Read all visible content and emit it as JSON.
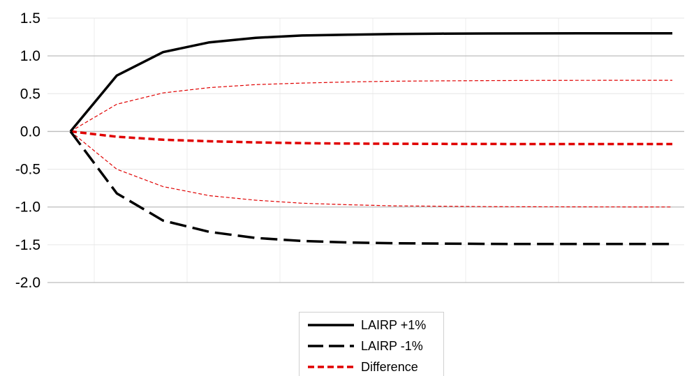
{
  "chart_data": {
    "type": "line",
    "title": "",
    "xlabel": "",
    "ylabel": "",
    "x": [
      0,
      1,
      2,
      3,
      4,
      5,
      6,
      7,
      8,
      9,
      10,
      11,
      12,
      13
    ],
    "ylim": [
      -2.0,
      1.5
    ],
    "yticks": [
      "1.5",
      "1.0",
      "0.5",
      "0.0",
      "-0.5",
      "-1.0",
      "-1.5",
      "-2.0"
    ],
    "grid": "horizontal and vertical",
    "legend": "bottom-center",
    "series": [
      {
        "name": "LAIRP +1%",
        "color": "#000000",
        "style": "solid",
        "values": [
          0.0,
          0.74,
          1.05,
          1.18,
          1.24,
          1.27,
          1.28,
          1.29,
          1.295,
          1.297,
          1.298,
          1.299,
          1.3,
          1.3
        ]
      },
      {
        "name": "LAIRP -1%",
        "color": "#000000",
        "style": "long-dash",
        "values": [
          0.0,
          -0.82,
          -1.18,
          -1.33,
          -1.41,
          -1.45,
          -1.47,
          -1.48,
          -1.485,
          -1.488,
          -1.49,
          -1.49,
          -1.49,
          -1.49
        ]
      },
      {
        "name": "Difference",
        "color": "#e00000",
        "style": "dashed",
        "values": [
          0.0,
          -0.07,
          -0.11,
          -0.13,
          -0.145,
          -0.155,
          -0.16,
          -0.163,
          -0.165,
          -0.166,
          -0.167,
          -0.167,
          -0.167,
          -0.167
        ]
      },
      {
        "name": "",
        "color": "#e00000",
        "style": "thin-dashed",
        "values": [
          0.0,
          0.36,
          0.51,
          0.58,
          0.62,
          0.64,
          0.655,
          0.665,
          0.67,
          0.673,
          0.675,
          0.676,
          0.677,
          0.677
        ]
      },
      {
        "name": "",
        "color": "#e00000",
        "style": "thin-dashed",
        "values": [
          0.0,
          -0.5,
          -0.73,
          -0.85,
          -0.91,
          -0.95,
          -0.97,
          -0.985,
          -0.99,
          -0.995,
          -0.997,
          -0.998,
          -0.999,
          -1.0
        ]
      }
    ]
  }
}
